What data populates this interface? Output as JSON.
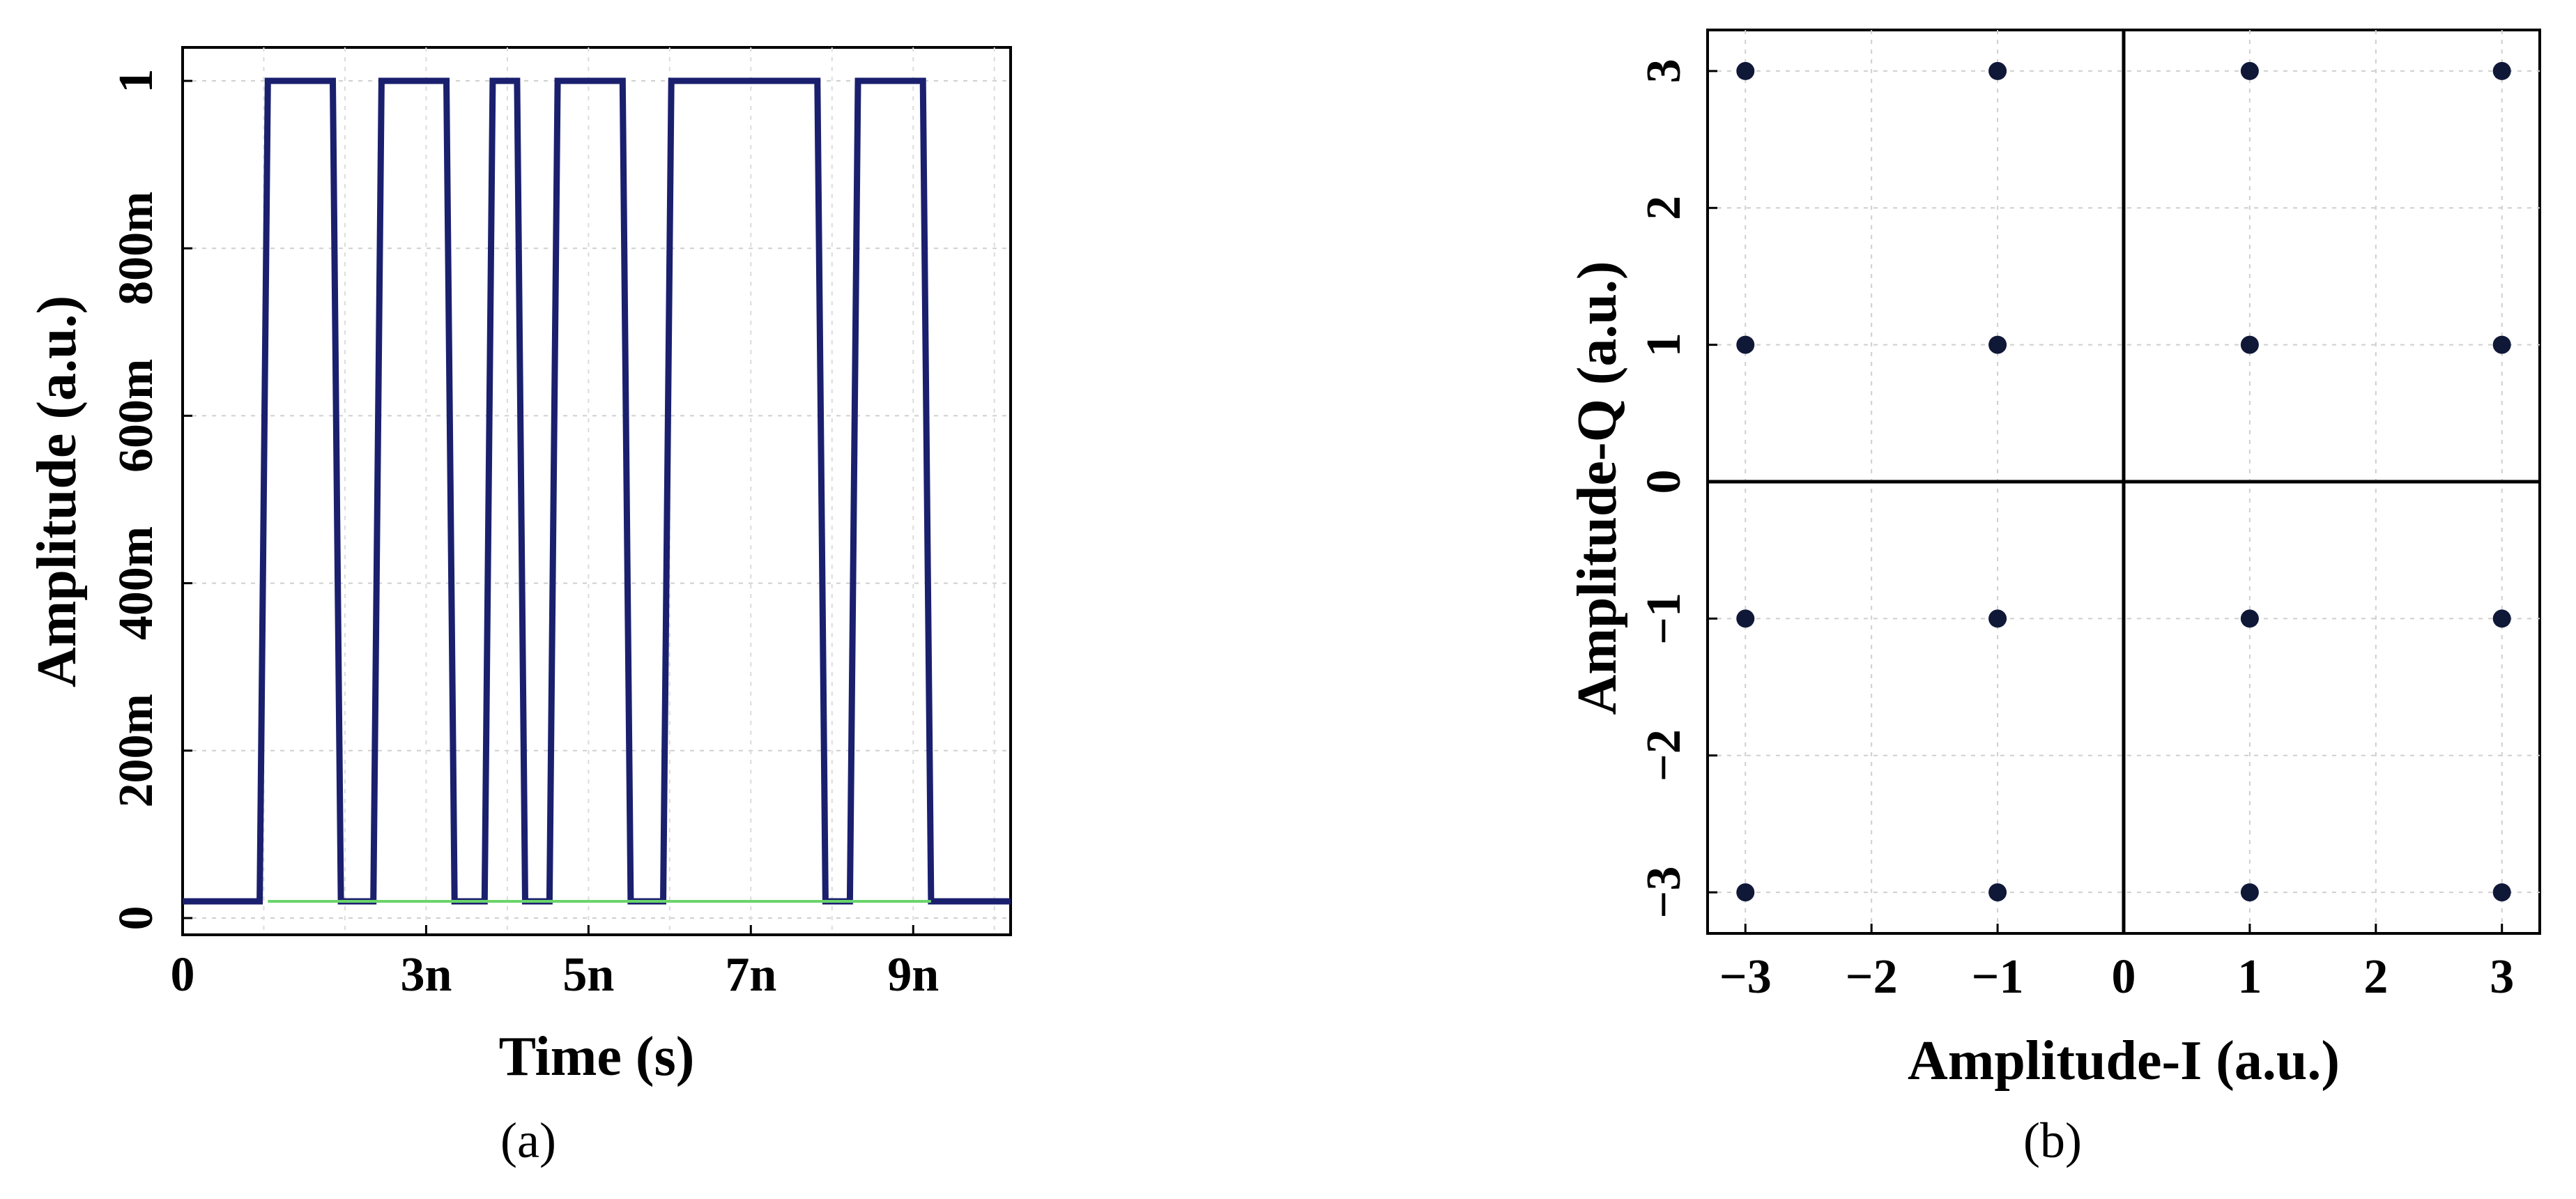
{
  "chart_data": [
    {
      "type": "line",
      "caption": "(a)",
      "xlabel": "Time (s)",
      "ylabel": "Amplitude (a.u.)",
      "xlim": [
        0,
        1.02e-08
      ],
      "ylim": [
        -0.02,
        1.04
      ],
      "xticks": [
        {
          "value": 0,
          "label": "0"
        },
        {
          "value": 3e-09,
          "label": "3n"
        },
        {
          "value": 5e-09,
          "label": "5n"
        },
        {
          "value": 7e-09,
          "label": "7n"
        },
        {
          "value": 9e-09,
          "label": "9n"
        }
      ],
      "yticks": [
        {
          "value": 0,
          "label": "0"
        },
        {
          "value": 0.2,
          "label": "200m"
        },
        {
          "value": 0.4,
          "label": "400m"
        },
        {
          "value": 0.6,
          "label": "600m"
        },
        {
          "value": 0.8,
          "label": "800m"
        },
        {
          "value": 1,
          "label": "1"
        }
      ],
      "series": [
        {
          "color": "#1a1f6e",
          "points": [
            [
              0,
              0.02
            ],
            [
              9.5e-10,
              0.02
            ],
            [
              1.05e-09,
              1.0
            ],
            [
              1.85e-09,
              1.0
            ],
            [
              1.95e-09,
              0.02
            ],
            [
              2.35e-09,
              0.02
            ],
            [
              2.45e-09,
              1.0
            ],
            [
              3.25e-09,
              1.0
            ],
            [
              3.35e-09,
              0.02
            ],
            [
              3.72e-09,
              0.02
            ],
            [
              3.82e-09,
              1.0
            ],
            [
              4.12e-09,
              1.0
            ],
            [
              4.22e-09,
              0.02
            ],
            [
              4.52e-09,
              0.02
            ],
            [
              4.62e-09,
              1.0
            ],
            [
              5.42e-09,
              1.0
            ],
            [
              5.52e-09,
              0.02
            ],
            [
              5.92e-09,
              0.02
            ],
            [
              6.02e-09,
              1.0
            ],
            [
              7.82e-09,
              1.0
            ],
            [
              7.92e-09,
              0.02
            ],
            [
              8.22e-09,
              0.02
            ],
            [
              8.32e-09,
              1.0
            ],
            [
              9.12e-09,
              1.0
            ],
            [
              9.22e-09,
              0.02
            ],
            [
              1.02e-08,
              0.02
            ]
          ]
        },
        {
          "color": "#6ad46a",
          "points": [
            [
              1.05e-09,
              0.02
            ],
            [
              9.22e-09,
              0.02
            ]
          ]
        }
      ],
      "grid": true
    },
    {
      "type": "scatter",
      "caption": "(b)",
      "xlabel": "Amplitude-I (a.u.)",
      "ylabel": "Amplitude-Q (a.u.)",
      "xlim": [
        -3.3,
        3.3
      ],
      "ylim": [
        -3.3,
        3.3
      ],
      "xticks": [
        {
          "value": -3,
          "label": "−3"
        },
        {
          "value": -2,
          "label": "−2"
        },
        {
          "value": -1,
          "label": "−1"
        },
        {
          "value": 0,
          "label": "0"
        },
        {
          "value": 1,
          "label": "1"
        },
        {
          "value": 2,
          "label": "2"
        },
        {
          "value": 3,
          "label": "3"
        }
      ],
      "yticks": [
        {
          "value": -3,
          "label": "−3"
        },
        {
          "value": -2,
          "label": "−2"
        },
        {
          "value": -1,
          "label": "−1"
        },
        {
          "value": 0,
          "label": "0"
        },
        {
          "value": 1,
          "label": "1"
        },
        {
          "value": 2,
          "label": "2"
        },
        {
          "value": 3,
          "label": "3"
        }
      ],
      "marker_color": "#101838",
      "points": [
        [
          -3,
          3
        ],
        [
          -1,
          3
        ],
        [
          1,
          3
        ],
        [
          3,
          3
        ],
        [
          -3,
          1
        ],
        [
          -1,
          1
        ],
        [
          1,
          1
        ],
        [
          3,
          1
        ],
        [
          -3,
          -1
        ],
        [
          -1,
          -1
        ],
        [
          1,
          -1
        ],
        [
          3,
          -1
        ],
        [
          -3,
          -3
        ],
        [
          -1,
          -3
        ],
        [
          1,
          -3
        ],
        [
          3,
          -3
        ]
      ],
      "grid": true
    }
  ]
}
